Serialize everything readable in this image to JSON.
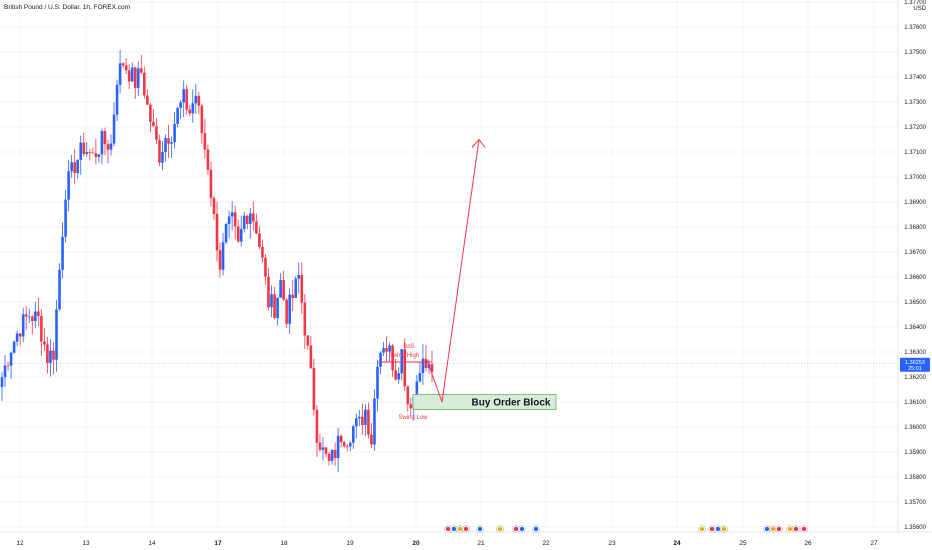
{
  "header": {
    "symbol_title": "British Pound / U.S. Dollar, 1h, FOREX.com"
  },
  "axis": {
    "currency": "USD",
    "y_ticks": [
      "1.37700",
      "1.37600",
      "1.37500",
      "1.37400",
      "1.37300",
      "1.37200",
      "1.37100",
      "1.37000",
      "1.36900",
      "1.36800",
      "1.36700",
      "1.36600",
      "1.36500",
      "1.36400",
      "1.36300",
      "1.36200",
      "1.36100",
      "1.36000",
      "1.35900",
      "1.35800",
      "1.35700",
      "1.35600"
    ],
    "x_ticks": [
      "12",
      "13",
      "14",
      "17",
      "18",
      "19",
      "20",
      "21",
      "22",
      "23",
      "24",
      "25",
      "26",
      "27"
    ],
    "bold_x_ticks": [
      "17",
      "20",
      "24"
    ]
  },
  "current_price": {
    "value": "1.36253",
    "countdown": "25:01"
  },
  "annotations": {
    "bos": "BoS",
    "swing_high": "Swing High",
    "swing_low": "Swing Low",
    "order_block": "Buy Order Block"
  },
  "colors": {
    "up": "#2962ff",
    "down": "#f23645",
    "order_block_fill": "#d7ecd8",
    "order_block_border": "#4caf50",
    "projection_arrow": "#f23645"
  },
  "chart_data": {
    "type": "candlestick",
    "title": "British Pound / U.S. Dollar, 1h, FOREX.com",
    "unit": "USD",
    "ylim": [
      1.3555,
      1.3775
    ],
    "x_tick_labels": [
      "12",
      "13",
      "14",
      "17",
      "18",
      "19",
      "20",
      "21",
      "22",
      "23",
      "24",
      "25",
      "26",
      "27"
    ],
    "path_points": [
      [
        0,
        1.362
      ],
      [
        3,
        1.3632
      ],
      [
        6,
        1.364
      ],
      [
        9,
        1.3645
      ],
      [
        12,
        1.3643
      ],
      [
        15,
        1.3628
      ],
      [
        17,
        1.363
      ],
      [
        19,
        1.3663
      ],
      [
        21,
        1.3695
      ],
      [
        24,
        1.3705
      ],
      [
        27,
        1.3712
      ],
      [
        30,
        1.3708
      ],
      [
        33,
        1.3714
      ],
      [
        36,
        1.3713
      ],
      [
        38,
        1.374
      ],
      [
        40,
        1.3746
      ],
      [
        42,
        1.3742
      ],
      [
        44,
        1.3738
      ],
      [
        46,
        1.3742
      ],
      [
        48,
        1.3728
      ],
      [
        50,
        1.3718
      ],
      [
        52,
        1.3709
      ],
      [
        54,
        1.3716
      ],
      [
        56,
        1.3718
      ],
      [
        58,
        1.3726
      ],
      [
        60,
        1.3731
      ],
      [
        62,
        1.3726
      ],
      [
        64,
        1.3733
      ],
      [
        66,
        1.3718
      ],
      [
        68,
        1.3705
      ],
      [
        70,
        1.3683
      ],
      [
        72,
        1.3665
      ],
      [
        74,
        1.3678
      ],
      [
        76,
        1.3682
      ],
      [
        78,
        1.3672
      ],
      [
        80,
        1.3684
      ],
      [
        82,
        1.3687
      ],
      [
        84,
        1.368
      ],
      [
        86,
        1.3666
      ],
      [
        88,
        1.365
      ],
      [
        90,
        1.3648
      ],
      [
        92,
        1.3658
      ],
      [
        94,
        1.3645
      ],
      [
        96,
        1.3652
      ],
      [
        98,
        1.366
      ],
      [
        100,
        1.364
      ],
      [
        102,
        1.362
      ],
      [
        104,
        1.3598
      ],
      [
        106,
        1.359
      ],
      [
        108,
        1.3585
      ],
      [
        110,
        1.359
      ],
      [
        112,
        1.3597
      ],
      [
        114,
        1.3596
      ],
      [
        116,
        1.36
      ],
      [
        118,
        1.3601
      ],
      [
        120,
        1.3607
      ],
      [
        122,
        1.3595
      ],
      [
        124,
        1.3628
      ],
      [
        126,
        1.3634
      ],
      [
        128,
        1.363
      ],
      [
        130,
        1.3622
      ],
      [
        132,
        1.363
      ],
      [
        134,
        1.361
      ],
      [
        136,
        1.3612
      ],
      [
        138,
        1.3626
      ],
      [
        140,
        1.3624
      ],
      [
        142,
        1.3622
      ]
    ],
    "order_block": {
      "price_low": 1.3607,
      "price_high": 1.3613,
      "label": "Buy Order Block"
    },
    "swing_high_price": 1.3626,
    "swing_low_price": 1.361,
    "projection": {
      "from_price": 1.361,
      "to_price": 1.3715
    }
  }
}
